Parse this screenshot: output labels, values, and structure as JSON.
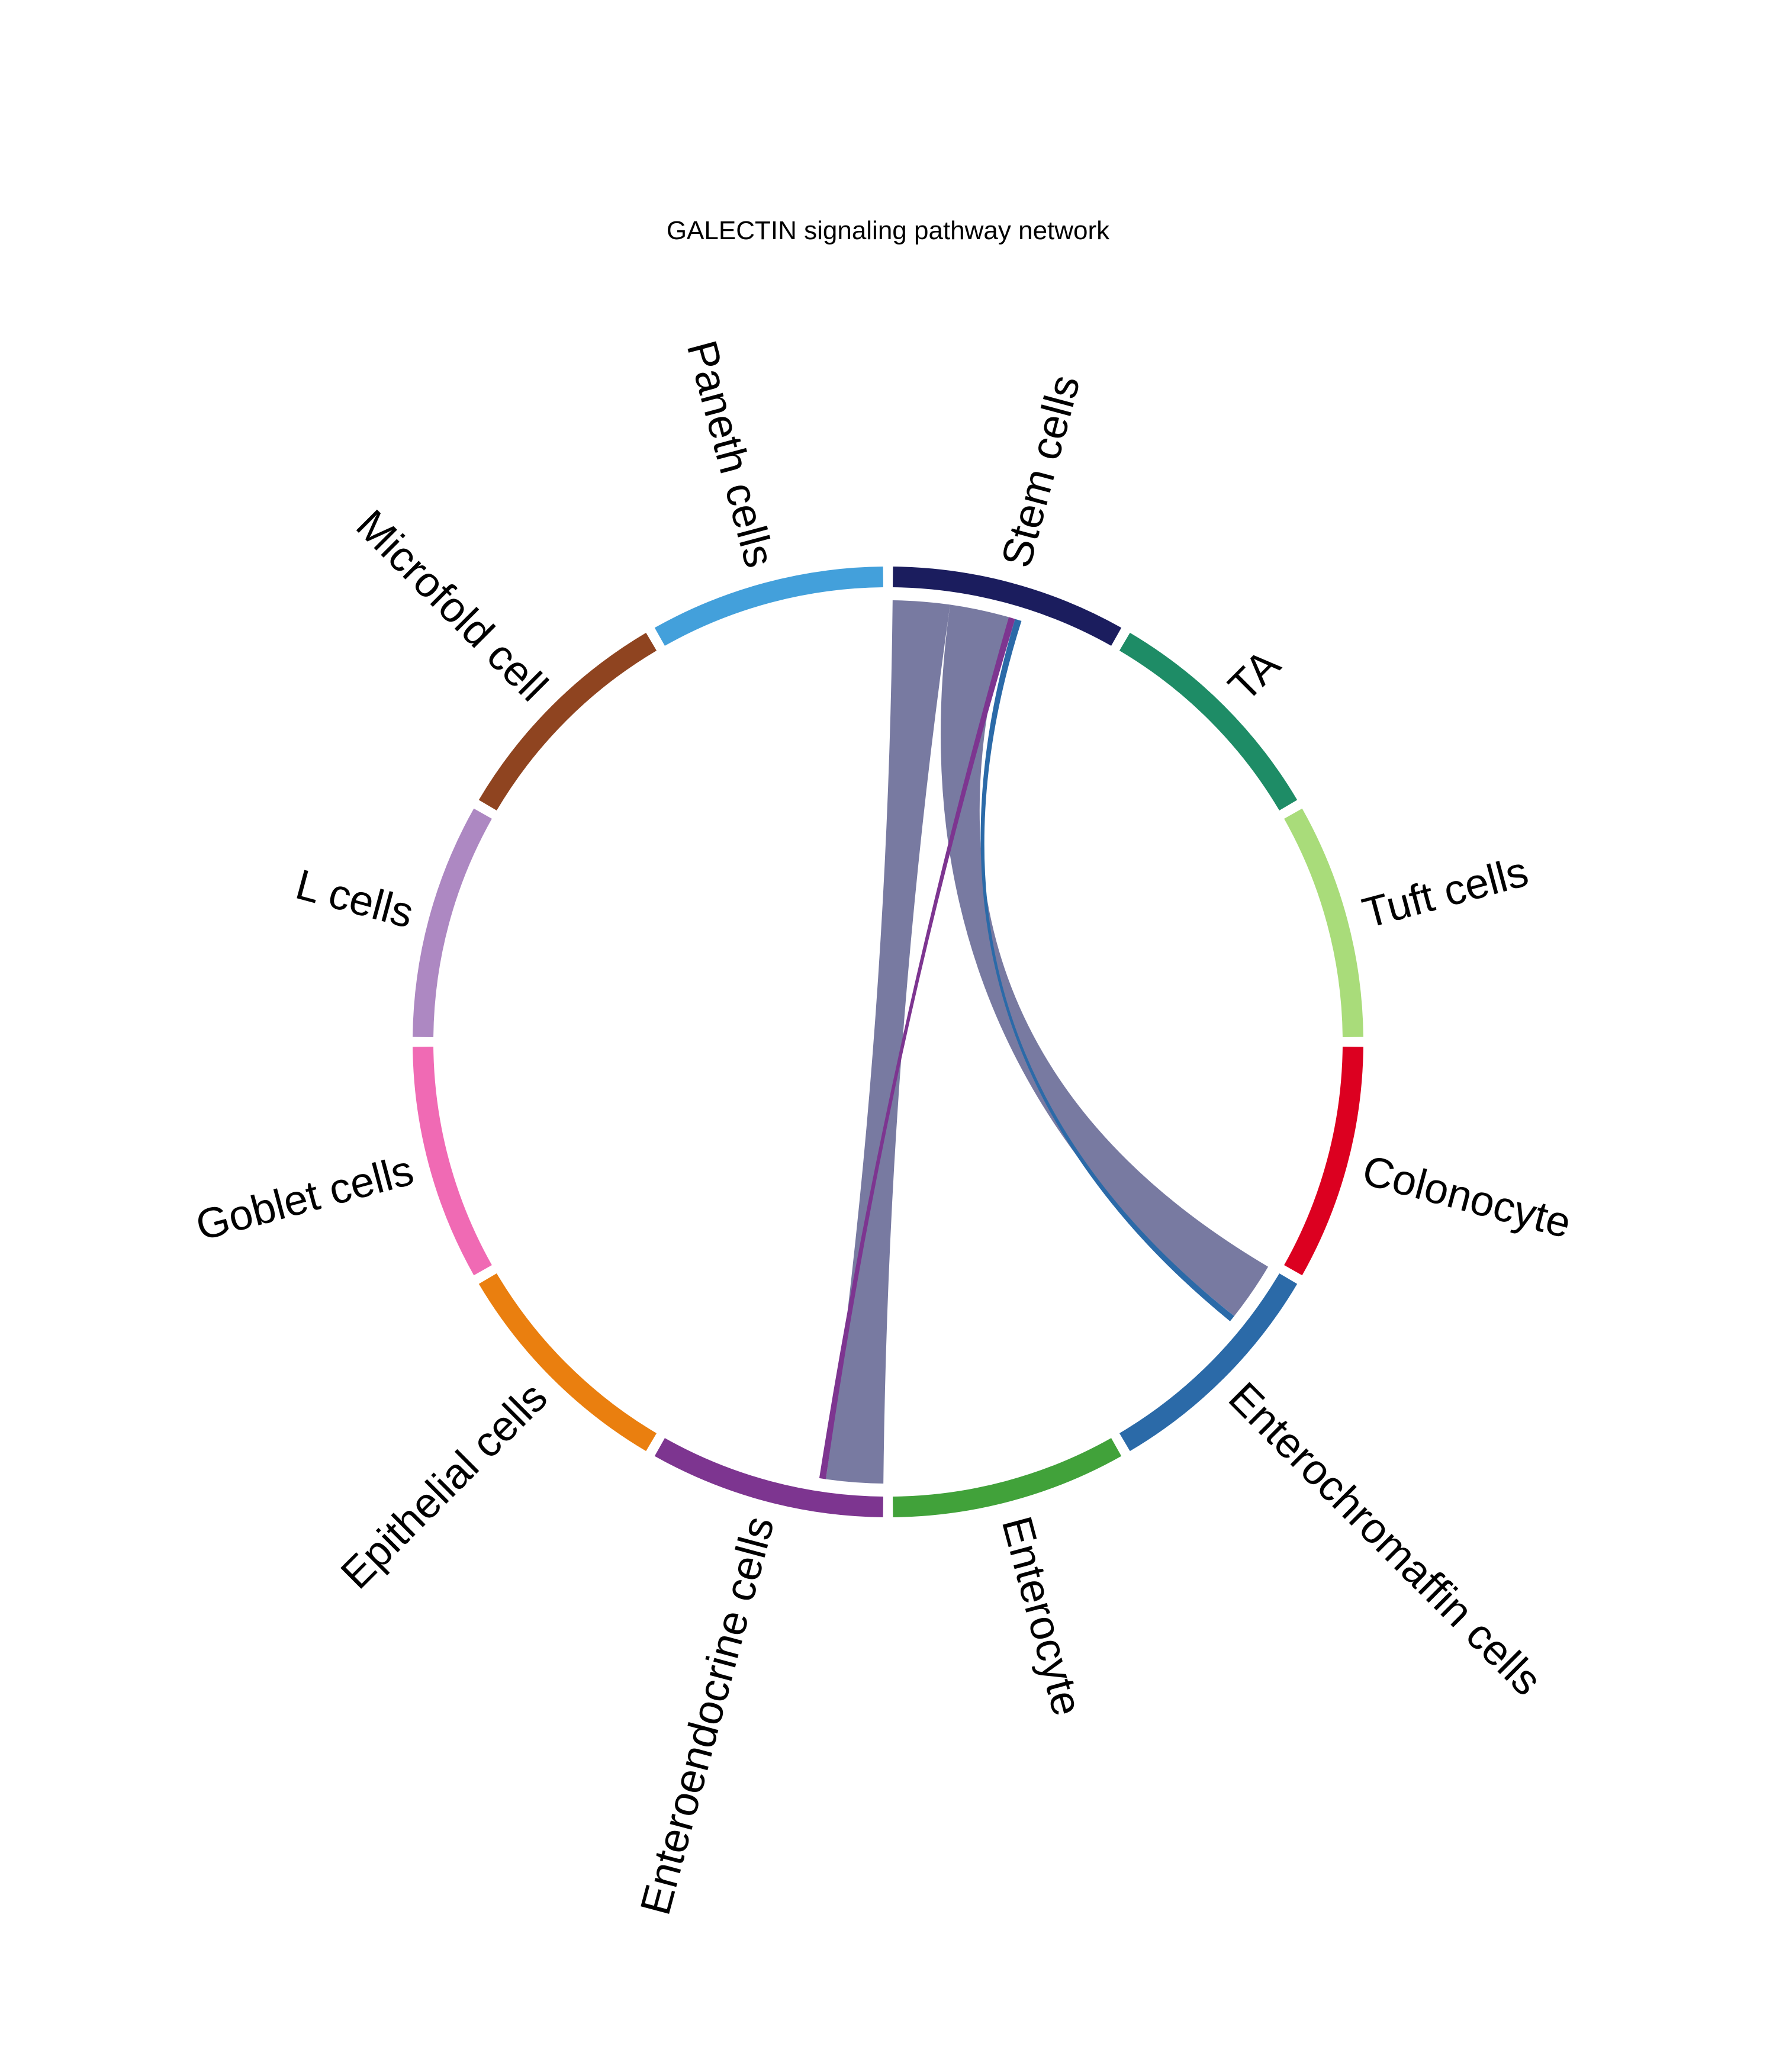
{
  "chart_data": {
    "type": "chord",
    "title": "GALECTIN signaling pathway network",
    "sectors": [
      {
        "name": "Stem cells",
        "color": "#1b1d5e"
      },
      {
        "name": "TA",
        "color": "#1e8c66"
      },
      {
        "name": "Tuft cells",
        "color": "#a9dc7a"
      },
      {
        "name": "Colonocyte",
        "color": "#dc0020"
      },
      {
        "name": "Enterochromaffin cells",
        "color": "#2b6aa8"
      },
      {
        "name": "Enterocyte",
        "color": "#41a23a"
      },
      {
        "name": "Enteroendocrine cells",
        "color": "#7d3590"
      },
      {
        "name": "Epithelial cells",
        "color": "#ea7f0f"
      },
      {
        "name": "Goblet cells",
        "color": "#f06ab4"
      },
      {
        "name": "L cells",
        "color": "#ad88c2"
      },
      {
        "name": "Microfold cell",
        "color": "#8f4420"
      },
      {
        "name": "Paneth cells",
        "color": "#43a0db"
      }
    ],
    "links": [
      {
        "source": "Stem cells",
        "target": "Enteroendocrine cells",
        "value": 0.26,
        "color": "#787aa1"
      },
      {
        "source": "Stem cells",
        "target": "Enterochromaffin cells",
        "value": 0.27,
        "color": "#787aa1"
      },
      {
        "source": "Enteroendocrine cells",
        "target": "Stem cells",
        "value": 0.03,
        "color": "#7d3590"
      },
      {
        "source": "Enterochromaffin cells",
        "target": "Stem cells",
        "value": 0.03,
        "color": "#2b6aa8"
      }
    ]
  }
}
